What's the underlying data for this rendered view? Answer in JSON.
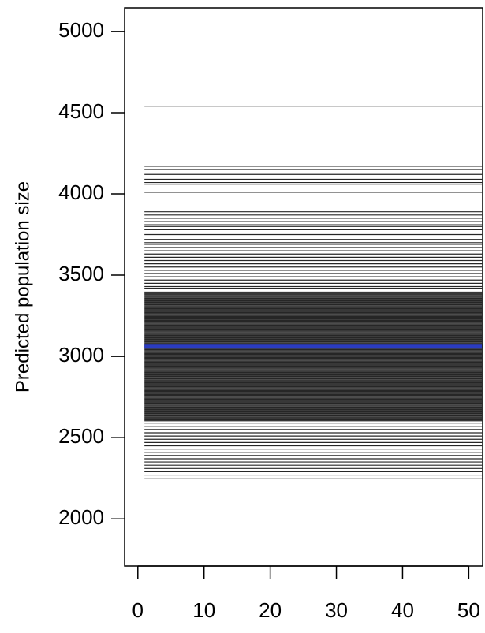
{
  "chart_data": {
    "type": "line",
    "y_label": "Predicted population size",
    "x": [
      1,
      52
    ],
    "xlim": [
      -2,
      52.1
    ],
    "xticks": [
      0,
      10,
      20,
      30,
      40,
      50
    ],
    "ylim": [
      1710,
      5145
    ],
    "yticks": [
      2000,
      2500,
      3000,
      3500,
      4000,
      4500,
      5000
    ],
    "trajectories": {
      "color": "#000000",
      "levels": [
        4540,
        4170,
        4150,
        4120,
        4090,
        4070,
        4060,
        4010,
        3890,
        3870,
        3850,
        3830,
        3810,
        3800,
        3780,
        3750,
        3720,
        3700,
        3690,
        3670,
        3650,
        3630,
        3610,
        3590,
        3570,
        3550,
        3530,
        3510,
        3490,
        3470,
        3450,
        3430,
        3420,
        3396,
        3390,
        3384,
        3378,
        3372,
        3366,
        3360,
        3354,
        3348,
        3342,
        3336,
        3330,
        3324,
        3318,
        3312,
        3306,
        3300,
        3294,
        3288,
        3282,
        3276,
        3270,
        3264,
        3258,
        3252,
        3246,
        3240,
        3234,
        3228,
        3222,
        3216,
        3210,
        3204,
        3198,
        3192,
        3186,
        3180,
        3174,
        3168,
        3162,
        3156,
        3150,
        3144,
        3138,
        3132,
        3126,
        3120,
        3114,
        3108,
        3102,
        3096,
        3090,
        3084,
        3078,
        3072,
        3066,
        3060,
        3054,
        3048,
        3042,
        3036,
        3030,
        3024,
        3018,
        3012,
        3006,
        3000,
        2994,
        2988,
        2982,
        2976,
        2970,
        2964,
        2958,
        2952,
        2946,
        2940,
        2934,
        2928,
        2922,
        2916,
        2910,
        2904,
        2898,
        2892,
        2886,
        2880,
        2874,
        2868,
        2862,
        2856,
        2850,
        2844,
        2838,
        2832,
        2826,
        2820,
        2814,
        2808,
        2802,
        2796,
        2790,
        2784,
        2778,
        2772,
        2766,
        2760,
        2754,
        2748,
        2742,
        2736,
        2730,
        2724,
        2718,
        2712,
        2706,
        2700,
        2694,
        2688,
        2682,
        2676,
        2670,
        2664,
        2658,
        2652,
        2646,
        2640,
        2634,
        2628,
        2622,
        2616,
        2610,
        2604,
        2590,
        2570,
        2550,
        2530,
        2510,
        2490,
        2470,
        2450,
        2430,
        2410,
        2390,
        2370,
        2350,
        2330,
        2310,
        2290,
        2270,
        2250
      ]
    },
    "mean": {
      "color": "#2b3cc0",
      "level": 3060
    }
  }
}
